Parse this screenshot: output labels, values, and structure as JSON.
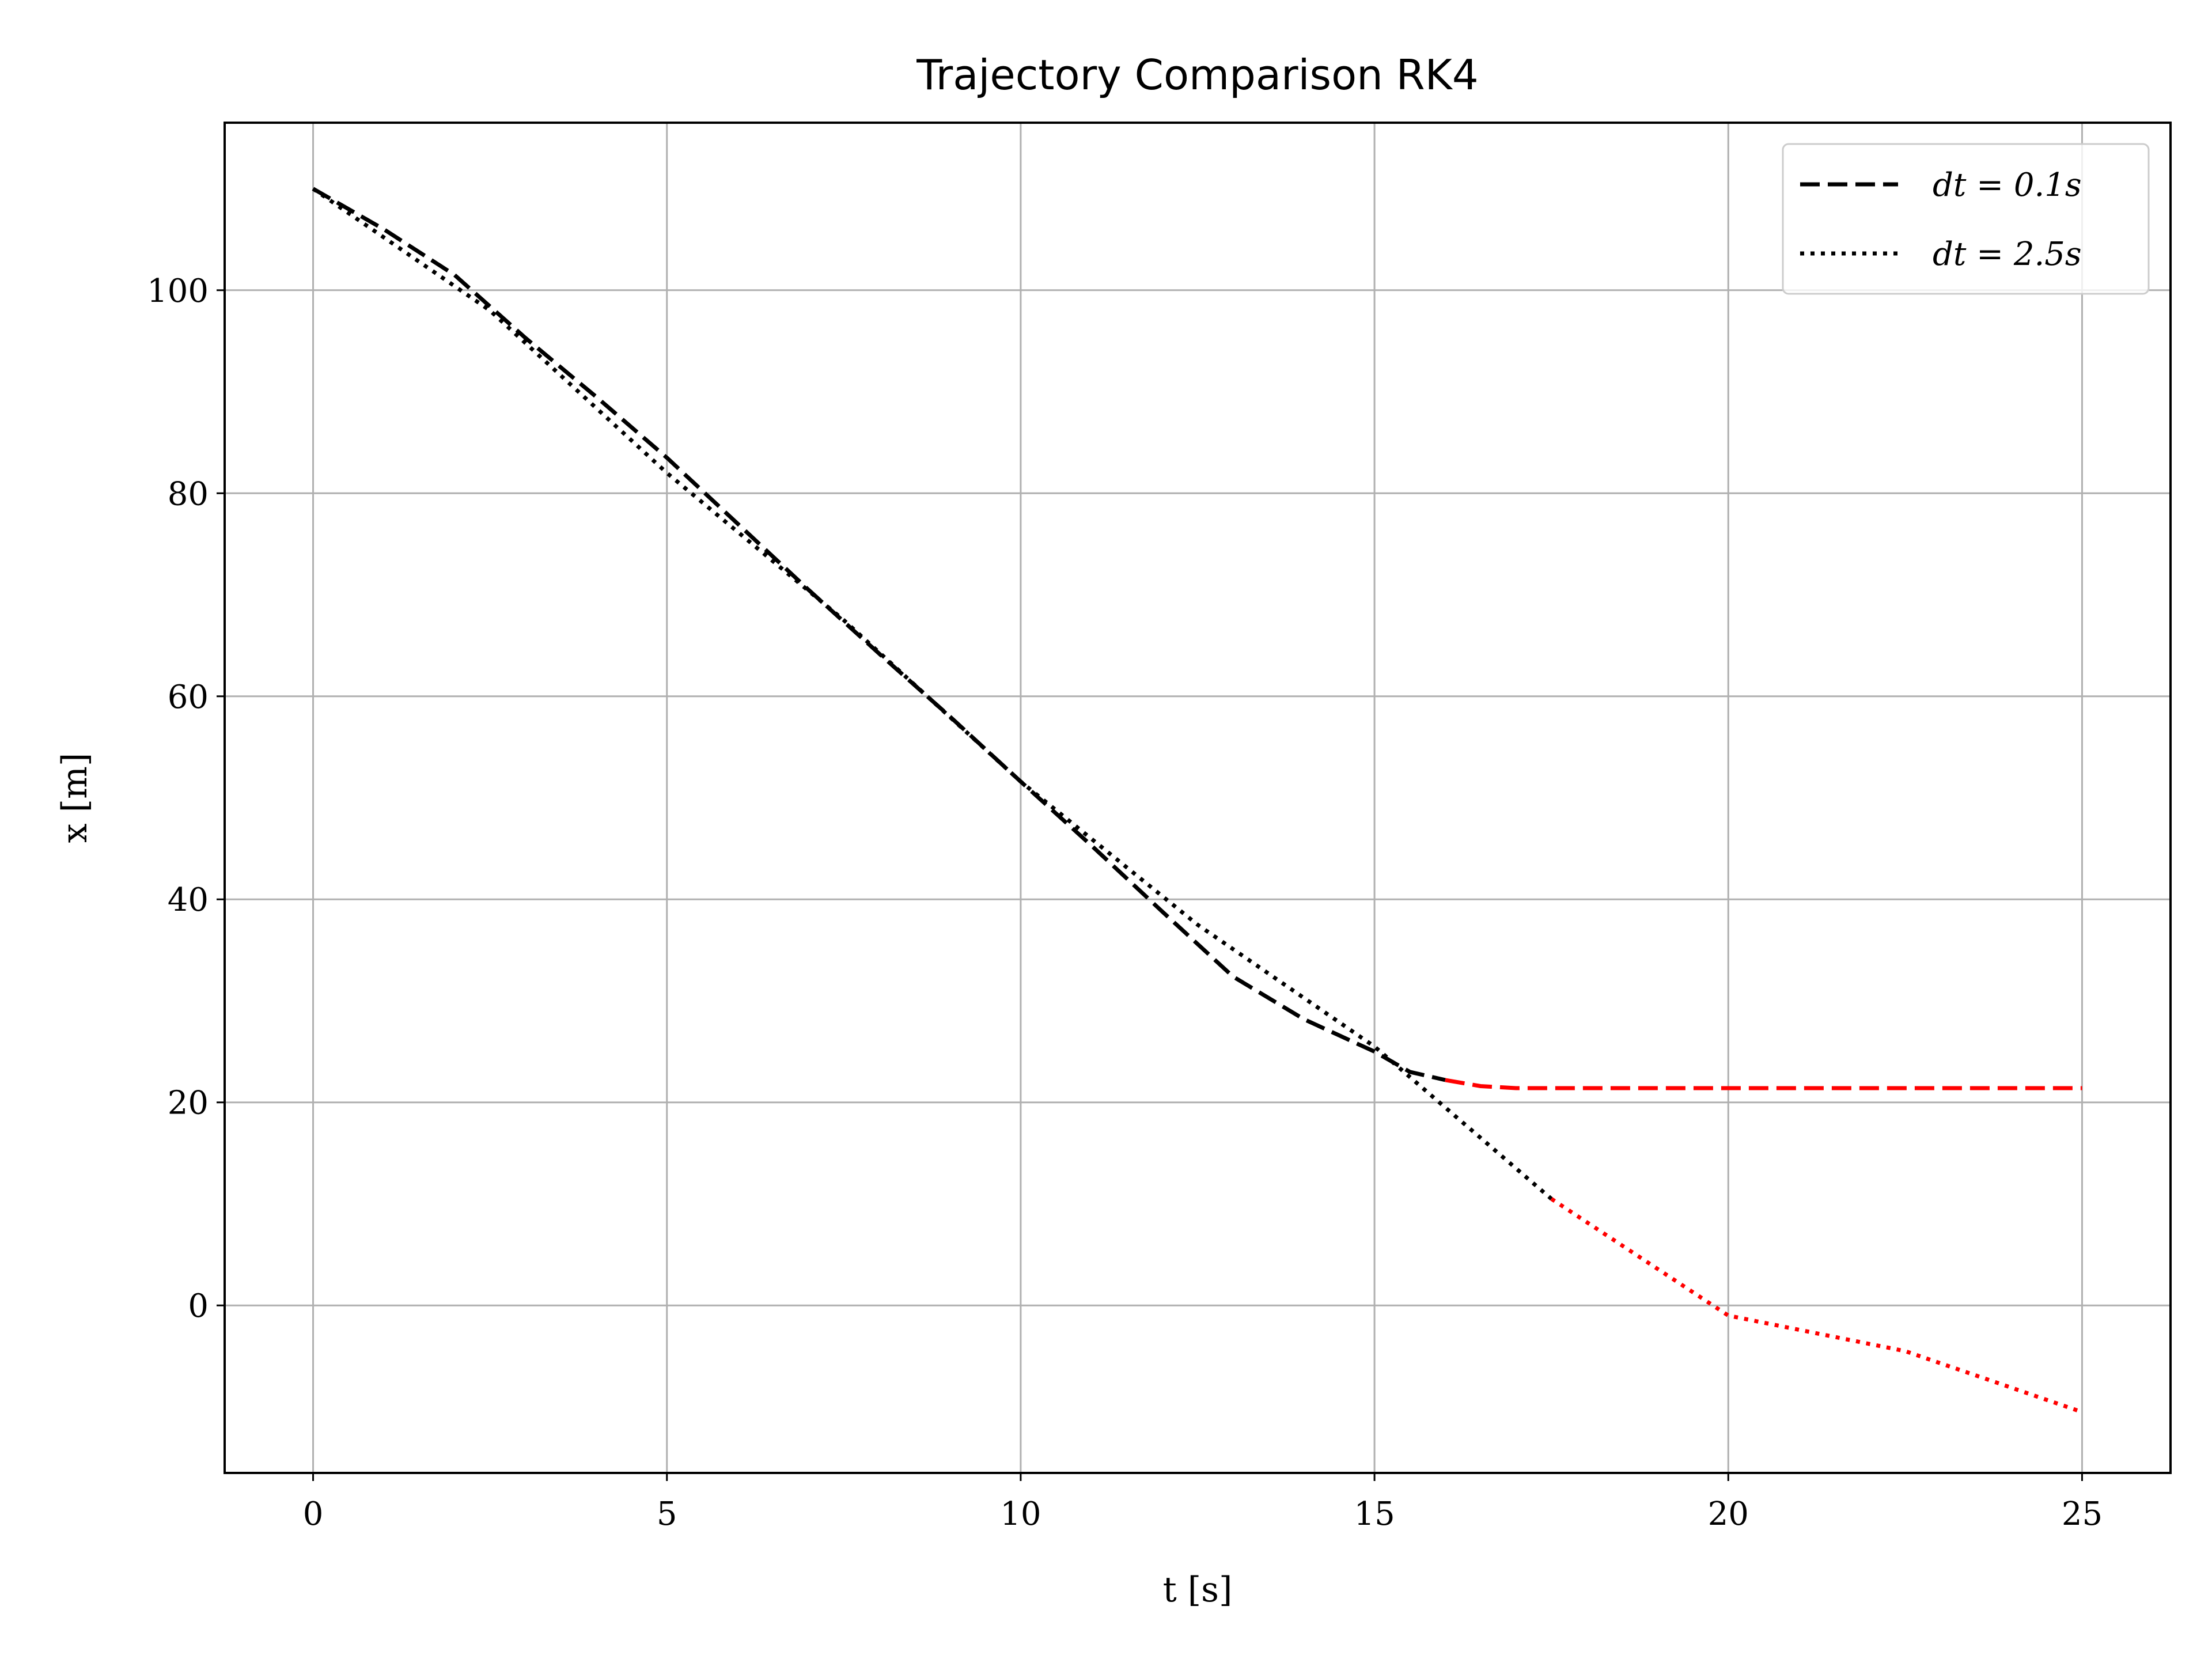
{
  "chart_data": {
    "type": "line",
    "title": "Trajectory Comparison RK4",
    "xlabel": "t [s]",
    "ylabel": "x [m]",
    "xlim": [
      -1.25,
      26.25
    ],
    "ylim": [
      -16.5,
      116.5
    ],
    "xticks": [
      0,
      5,
      10,
      15,
      20,
      25
    ],
    "yticks": [
      0,
      20,
      40,
      60,
      80,
      100
    ],
    "grid": true,
    "legend_position": "top-right",
    "colors": {
      "normal": "#000000",
      "highlight": "#ff0000",
      "grid": "#b0b0b0"
    },
    "series": [
      {
        "name": "dt = 0.1s",
        "style": "dashed",
        "x": [
          0,
          1,
          2,
          3,
          4,
          5,
          6,
          7,
          8,
          9,
          10,
          11,
          12,
          13,
          14,
          15,
          15.5,
          16,
          16.5,
          17,
          18,
          19,
          20,
          21,
          22,
          23,
          24,
          25
        ],
        "y": [
          110,
          106,
          101.5,
          95.3,
          89.5,
          83.5,
          77,
          70.5,
          64.2,
          58,
          51.6,
          45.3,
          38.8,
          32.4,
          28.2,
          25,
          23,
          22.2,
          21.6,
          21.4,
          21.4,
          21.4,
          21.4,
          21.4,
          21.4,
          21.4,
          21.4,
          21.4
        ],
        "highlight_from_x": 16
      },
      {
        "name": "dt = 2.5s",
        "style": "dotted",
        "x": [
          0,
          2.5,
          5,
          7.5,
          10,
          12.5,
          15,
          17.5,
          20,
          22.5,
          25
        ],
        "y": [
          110,
          98,
          82,
          67.5,
          51.6,
          37.5,
          25.5,
          10.5,
          -1,
          -4.5,
          -10.5
        ],
        "highlight_from_x": 17.5
      }
    ],
    "legend": [
      {
        "label": "dt = 0.1s",
        "style": "dashed"
      },
      {
        "label": "dt = 2.5s",
        "style": "dotted"
      }
    ]
  }
}
